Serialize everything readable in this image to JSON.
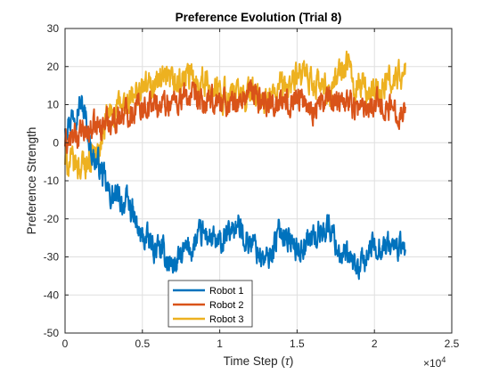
{
  "chart_data": {
    "type": "line",
    "title": "Preference Evolution (Trial 8)",
    "xlabel_prefix": "Time Step (",
    "xlabel_symbol": "τ",
    "xlabel_suffix": ")",
    "ylabel": "Preference Strength",
    "x_exponent_base": "×10",
    "x_exponent_power": "4",
    "xlim": [
      0,
      25000
    ],
    "ylim": [
      -50,
      30
    ],
    "x_ticks": [
      0,
      5000,
      10000,
      15000,
      20000,
      25000
    ],
    "x_tick_labels": [
      "0",
      "0.5",
      "1",
      "1.5",
      "2",
      "2.5"
    ],
    "y_ticks": [
      -50,
      -40,
      -30,
      -20,
      -10,
      0,
      10,
      20,
      30
    ],
    "y_tick_labels": [
      "-50",
      "-40",
      "-30",
      "-20",
      "-10",
      "0",
      "10",
      "20",
      "30"
    ],
    "grid": true,
    "legend_position": "bottom-center",
    "series": [
      {
        "name": "Robot 1",
        "color": "#0072BD",
        "x": [
          0,
          1000,
          2000,
          3000,
          4000,
          5000,
          6000,
          7000,
          8000,
          9000,
          10000,
          11000,
          12000,
          13000,
          14000,
          15000,
          16000,
          17000,
          18000,
          19000,
          20000,
          21000,
          22000
        ],
        "y": [
          5,
          10,
          -5,
          -14,
          -16,
          -25,
          -28,
          -32,
          -28,
          -24,
          -27,
          -22,
          -26,
          -31,
          -23,
          -28,
          -25,
          -22,
          -30,
          -33,
          -27,
          -27,
          -28
        ],
        "amplitude": 3.5
      },
      {
        "name": "Robot 2",
        "color": "#D95319",
        "x": [
          0,
          1000,
          2000,
          3000,
          4000,
          5000,
          6000,
          7000,
          8000,
          9000,
          10000,
          11000,
          12000,
          13000,
          14000,
          15000,
          16000,
          17000,
          18000,
          19000,
          20000,
          21000,
          22000
        ],
        "y": [
          0,
          2,
          4,
          6,
          8,
          10,
          10,
          11,
          12,
          10,
          11,
          10,
          13,
          11,
          10,
          12,
          9,
          11,
          12,
          9,
          11,
          9,
          8
        ],
        "amplitude": 3.5
      },
      {
        "name": "Robot 3",
        "color": "#EDB120",
        "x": [
          0,
          1000,
          2000,
          3000,
          4000,
          5000,
          6000,
          7000,
          8000,
          9000,
          10000,
          11000,
          12000,
          13000,
          14000,
          15000,
          16000,
          17000,
          18000,
          19000,
          20000,
          21000,
          22000
        ],
        "y": [
          -5,
          -6,
          -3,
          8,
          10,
          14,
          16,
          15,
          17,
          16,
          13,
          12,
          13,
          10,
          14,
          17,
          16,
          13,
          20,
          15,
          13,
          16,
          18
        ],
        "amplitude": 4
      }
    ]
  }
}
